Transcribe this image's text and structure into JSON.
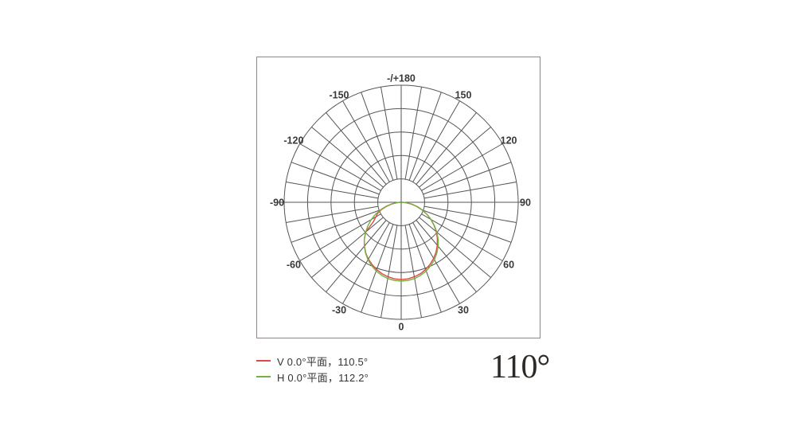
{
  "summary": {
    "beam_angle_label": "110°"
  },
  "chart_data": {
    "type": "polar_line",
    "title": "",
    "angle_unit": "degrees",
    "orientation": "0° at bottom nadir, positive angles clockwise to the right, -/+180 at top",
    "grid": {
      "rings": 5,
      "radial_line_step_deg": 10,
      "angle_label_step_deg": 30,
      "color": "#555555",
      "frame_color": "#8d8787"
    },
    "angle_labels": [
      {
        "angle": 0,
        "text": "0"
      },
      {
        "angle": 30,
        "text": "30"
      },
      {
        "angle": 60,
        "text": "60"
      },
      {
        "angle": 90,
        "text": "90"
      },
      {
        "angle": 120,
        "text": "120"
      },
      {
        "angle": 150,
        "text": "150"
      },
      {
        "angle": 180,
        "text": "-/+180"
      },
      {
        "angle": -150,
        "text": "-150"
      },
      {
        "angle": -120,
        "text": "-120"
      },
      {
        "angle": -90,
        "text": "-90"
      },
      {
        "angle": -60,
        "text": "-60"
      },
      {
        "angle": -30,
        "text": "-30"
      }
    ],
    "radial_axis": {
      "tick_labels_visible": false,
      "values_normalized_to_peak": 1.0
    },
    "series": [
      {
        "name": "V 0.0°平面，110.5°",
        "plane": "V 0.0°",
        "beam_angle_deg": 110.5,
        "color": "#e04848",
        "peak_fraction_of_outer_ring": 0.66,
        "points": [
          [
            -90,
            0.012
          ],
          [
            -85,
            0.05
          ],
          [
            -80,
            0.115
          ],
          [
            -75,
            0.19
          ],
          [
            -70,
            0.27
          ],
          [
            -65,
            0.335
          ],
          [
            -60,
            0.38
          ],
          [
            -55,
            0.44
          ],
          [
            -50,
            0.6
          ],
          [
            -45,
            0.675
          ],
          [
            -40,
            0.74
          ],
          [
            -35,
            0.8
          ],
          [
            -30,
            0.85
          ],
          [
            -25,
            0.89
          ],
          [
            -20,
            0.927
          ],
          [
            -15,
            0.957
          ],
          [
            -10,
            0.98
          ],
          [
            -5,
            0.995
          ],
          [
            0,
            1.0
          ],
          [
            5,
            0.995
          ],
          [
            10,
            0.98
          ],
          [
            15,
            0.958
          ],
          [
            20,
            0.925
          ],
          [
            25,
            0.885
          ],
          [
            30,
            0.84
          ],
          [
            35,
            0.787
          ],
          [
            40,
            0.727
          ],
          [
            45,
            0.662
          ],
          [
            50,
            0.592
          ],
          [
            55,
            0.518
          ],
          [
            60,
            0.443
          ],
          [
            65,
            0.366
          ],
          [
            70,
            0.292
          ],
          [
            75,
            0.218
          ],
          [
            80,
            0.142
          ],
          [
            85,
            0.066
          ],
          [
            90,
            0.012
          ]
        ]
      },
      {
        "name": "H 0.0°平面，112.2°",
        "plane": "H 0.0°",
        "beam_angle_deg": 112.2,
        "color": "#72b43e",
        "peak_fraction_of_outer_ring": 0.673,
        "points": [
          [
            -90,
            0.012
          ],
          [
            -85,
            0.055
          ],
          [
            -80,
            0.125
          ],
          [
            -75,
            0.2
          ],
          [
            -70,
            0.28
          ],
          [
            -65,
            0.36
          ],
          [
            -60,
            0.44
          ],
          [
            -55,
            0.515
          ],
          [
            -50,
            0.59
          ],
          [
            -45,
            0.663
          ],
          [
            -40,
            0.729
          ],
          [
            -35,
            0.789
          ],
          [
            -30,
            0.843
          ],
          [
            -25,
            0.888
          ],
          [
            -20,
            0.928
          ],
          [
            -15,
            0.959
          ],
          [
            -10,
            0.982
          ],
          [
            -5,
            0.996
          ],
          [
            0,
            1.0
          ],
          [
            5,
            0.996
          ],
          [
            10,
            0.982
          ],
          [
            15,
            0.959
          ],
          [
            20,
            0.928
          ],
          [
            25,
            0.888
          ],
          [
            30,
            0.843
          ],
          [
            35,
            0.789
          ],
          [
            40,
            0.729
          ],
          [
            45,
            0.663
          ],
          [
            50,
            0.59
          ],
          [
            55,
            0.515
          ],
          [
            60,
            0.44
          ],
          [
            65,
            0.36
          ],
          [
            70,
            0.28
          ],
          [
            75,
            0.2
          ],
          [
            80,
            0.125
          ],
          [
            85,
            0.055
          ],
          [
            90,
            0.012
          ]
        ]
      }
    ]
  }
}
